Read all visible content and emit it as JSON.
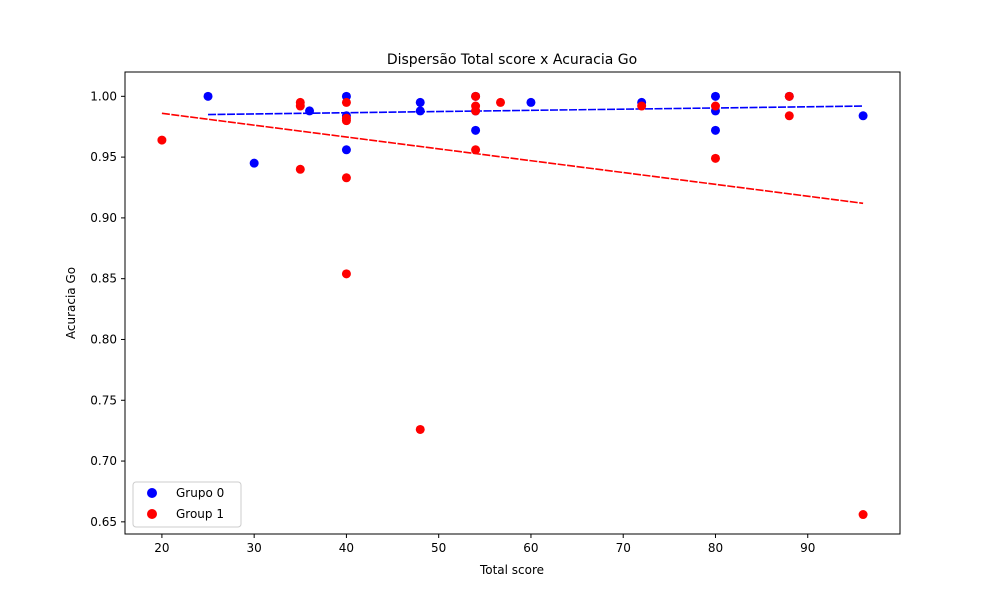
{
  "chart_data": {
    "type": "scatter",
    "title": "Dispersão Total score x Acuracia Go",
    "xlabel": "Total score",
    "ylabel": "Acuracia Go",
    "xlim": [
      16,
      100
    ],
    "ylim": [
      0.64,
      1.02
    ],
    "x_ticks": [
      20,
      30,
      40,
      50,
      60,
      70,
      80,
      90
    ],
    "y_ticks": [
      0.65,
      0.7,
      0.75,
      0.8,
      0.85,
      0.9,
      0.95,
      1.0
    ],
    "x_tick_labels": [
      "20",
      "30",
      "40",
      "50",
      "60",
      "70",
      "80",
      "90"
    ],
    "y_tick_labels": [
      "0.65",
      "0.70",
      "0.75",
      "0.80",
      "0.85",
      "0.90",
      "0.95",
      "1.00"
    ],
    "grid": false,
    "legend_position": "lower-left",
    "series": [
      {
        "name": "Grupo 0",
        "color": "#0000ff",
        "points": [
          [
            25,
            1.0
          ],
          [
            30,
            0.945
          ],
          [
            36,
            0.988
          ],
          [
            40,
            1.0
          ],
          [
            40,
            0.984
          ],
          [
            40,
            0.956
          ],
          [
            48,
            0.995
          ],
          [
            48,
            0.988
          ],
          [
            54,
            1.0
          ],
          [
            54,
            0.988
          ],
          [
            54,
            0.972
          ],
          [
            60,
            0.995
          ],
          [
            72,
            0.995
          ],
          [
            80,
            1.0
          ],
          [
            80,
            0.988
          ],
          [
            80,
            0.972
          ],
          [
            88,
            1.0
          ],
          [
            96,
            0.984
          ]
        ],
        "trendline": {
          "x": [
            25,
            96
          ],
          "y": [
            0.985,
            0.992
          ],
          "style": "dashed"
        }
      },
      {
        "name": "Group 1",
        "color": "#ff0000",
        "points": [
          [
            20,
            0.964
          ],
          [
            35,
            0.995
          ],
          [
            35,
            0.992
          ],
          [
            35,
            0.94
          ],
          [
            40,
            0.995
          ],
          [
            40,
            0.982
          ],
          [
            40,
            0.98
          ],
          [
            40,
            0.933
          ],
          [
            40,
            0.854
          ],
          [
            48,
            0.726
          ],
          [
            54,
            1.0
          ],
          [
            54,
            0.992
          ],
          [
            54,
            0.988
          ],
          [
            54,
            0.956
          ],
          [
            56.7,
            0.995
          ],
          [
            72,
            0.992
          ],
          [
            80,
            0.992
          ],
          [
            80,
            0.949
          ],
          [
            88,
            1.0
          ],
          [
            88,
            0.984
          ],
          [
            96,
            0.656
          ]
        ],
        "trendline": {
          "x": [
            20,
            96
          ],
          "y": [
            0.986,
            0.912
          ],
          "style": "dashed"
        }
      }
    ]
  }
}
